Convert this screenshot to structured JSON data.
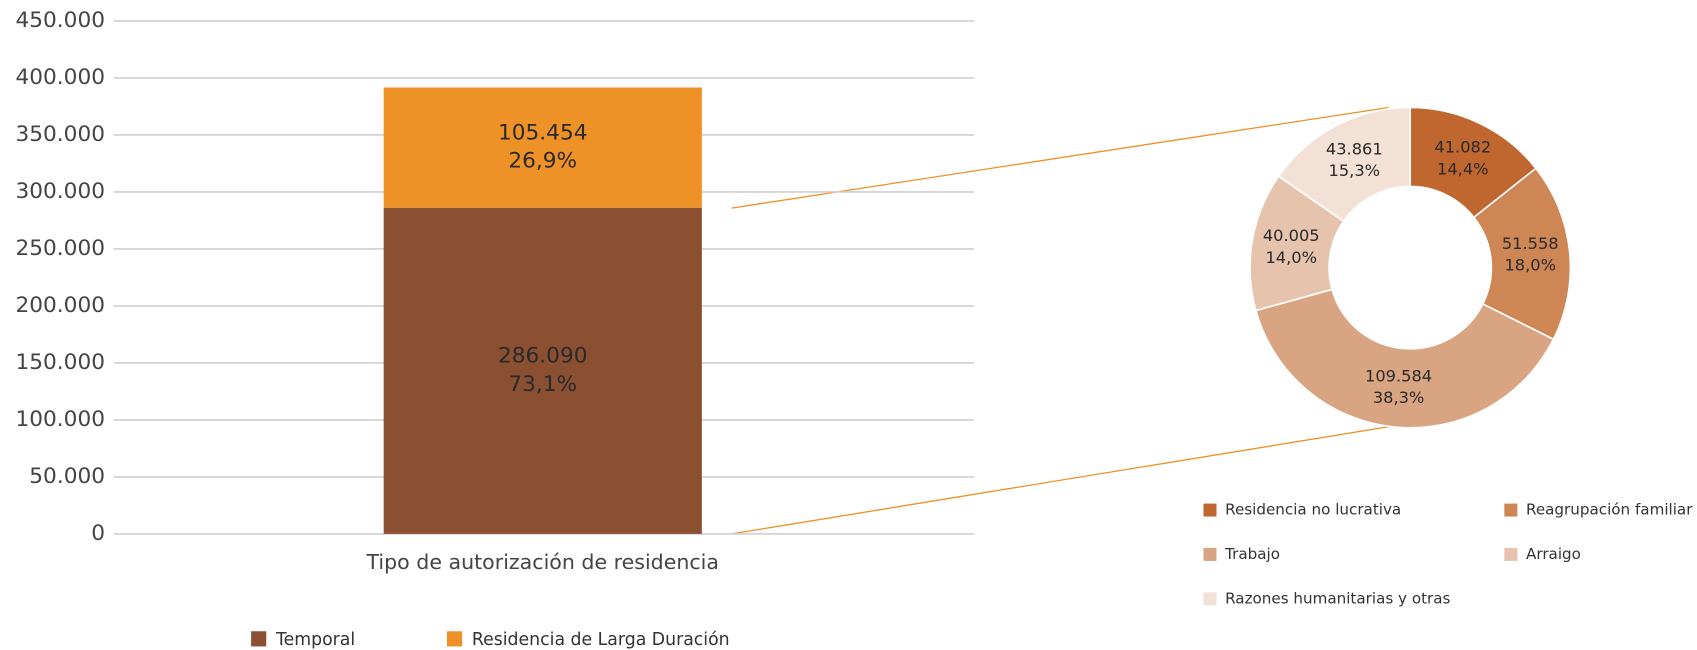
{
  "chart_data": [
    {
      "type": "stacked-bar",
      "categories": [
        "Tipo de autorización de residencia"
      ],
      "series": [
        {
          "name": "Temporal",
          "color": "#8b4f32",
          "values": [
            286090
          ],
          "value_labels": [
            "286.090"
          ],
          "percentages": [
            73.1
          ],
          "percent_labels": [
            "73,1%"
          ]
        },
        {
          "name": "Residencia de Larga Duración",
          "color": "#ee9127",
          "values": [
            105454
          ],
          "value_labels": [
            "105.454"
          ],
          "percentages": [
            26.9
          ],
          "percent_labels": [
            "26,9%"
          ]
        }
      ],
      "ylim": [
        0,
        450000
      ],
      "yticks": [
        0,
        {
          "value": 50000,
          "label": "50.000"
        },
        {
          "value": 100000,
          "label": "100.000"
        },
        {
          "value": 150000,
          "label": "150.000"
        },
        {
          "value": 200000,
          "label": "200.000"
        },
        {
          "value": 250000,
          "label": "250.000"
        },
        {
          "value": 300000,
          "label": "300.000"
        },
        {
          "value": 350000,
          "label": "350.000"
        },
        {
          "value": 400000,
          "label": "400.000"
        },
        {
          "value": 450000,
          "label": "450.000"
        }
      ],
      "grid": true,
      "legend": "bottom"
    },
    {
      "type": "donut",
      "categories": [
        "Residencia no lucrativa",
        "Reagrupación familiar",
        "Trabajo",
        "Arraigo",
        "Razones humanitarias y otras"
      ],
      "values": [
        41082,
        51558,
        109584,
        40005,
        43861
      ],
      "value_labels": [
        "41.082",
        "51.558",
        "109.584",
        "40.005",
        "43.861"
      ],
      "percentages": [
        14.4,
        18.0,
        38.3,
        14.0,
        15.3
      ],
      "percent_labels": [
        "14,4%",
        "18,0%",
        "38,3%",
        "14,0%",
        "15,3%"
      ],
      "colors": [
        "#c0672f",
        "#cd8654",
        "#d9a482",
        "#e6c3ad",
        "#f3e1d6"
      ],
      "legend": "bottom"
    }
  ]
}
